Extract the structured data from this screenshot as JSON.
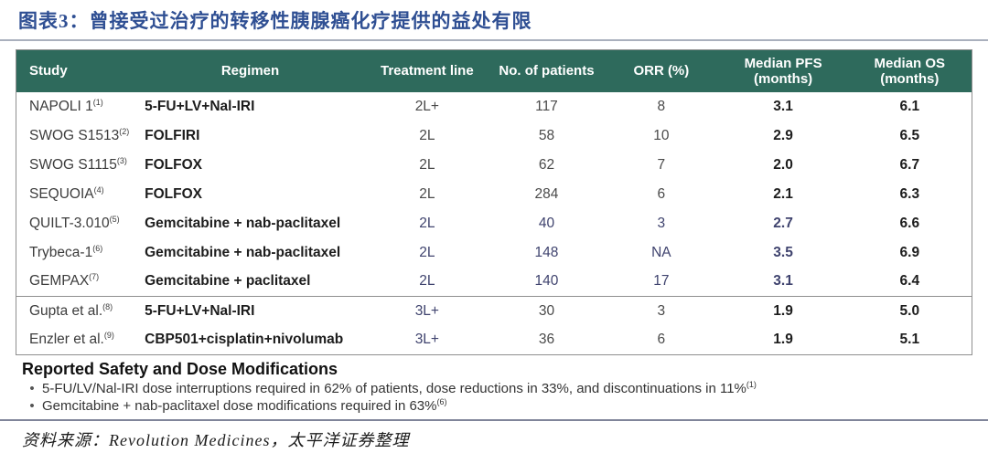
{
  "figure": {
    "title": "图表3：曾接受过治疗的转移性胰腺癌化疗提供的益处有限"
  },
  "table": {
    "columns": [
      {
        "key": "study",
        "label": "Study",
        "align": "left"
      },
      {
        "key": "regimen",
        "label": "Regimen",
        "align": "center"
      },
      {
        "key": "line",
        "label": "Treatment line",
        "align": "center"
      },
      {
        "key": "patients",
        "label": "No. of patients",
        "align": "center"
      },
      {
        "key": "orr",
        "label": "ORR (%)",
        "align": "center"
      },
      {
        "key": "pfs",
        "label": "Median PFS (months)",
        "align": "center"
      },
      {
        "key": "os",
        "label": "Median OS (months)",
        "align": "center"
      }
    ],
    "rows": [
      {
        "study": "NAPOLI 1",
        "ref": "(1)",
        "regimen": "5-FU+LV+Nal-IRI",
        "line": "2L+",
        "patients": "117",
        "orr": "8",
        "pfs": "3.1",
        "os": "6.1",
        "accent": "none",
        "group_start": false
      },
      {
        "study": "SWOG S1513",
        "ref": "(2)",
        "regimen": "FOLFIRI",
        "line": "2L",
        "patients": "58",
        "orr": "10",
        "pfs": "2.9",
        "os": "6.5",
        "accent": "none",
        "group_start": false
      },
      {
        "study": "SWOG S1115",
        "ref": "(3)",
        "regimen": "FOLFOX",
        "line": "2L",
        "patients": "62",
        "orr": "7",
        "pfs": "2.0",
        "os": "6.7",
        "accent": "none",
        "group_start": false
      },
      {
        "study": "SEQUOIA",
        "ref": "(4)",
        "regimen": "FOLFOX",
        "line": "2L",
        "patients": "284",
        "orr": "6",
        "pfs": "2.1",
        "os": "6.3",
        "accent": "none",
        "group_start": false
      },
      {
        "study": "QUILT-3.010",
        "ref": "(5)",
        "regimen": "Gemcitabine + nab-paclitaxel",
        "line": "2L",
        "patients": "40",
        "orr": "3",
        "pfs": "2.7",
        "os": "6.6",
        "accent": "values",
        "group_start": false
      },
      {
        "study": "Trybeca-1",
        "ref": "(6)",
        "regimen": "Gemcitabine + nab-paclitaxel",
        "line": "2L",
        "patients": "148",
        "orr": "NA",
        "pfs": "3.5",
        "os": "6.9",
        "accent": "values",
        "group_start": false
      },
      {
        "study": "GEMPAX",
        "ref": "(7)",
        "regimen": "Gemcitabine + paclitaxel",
        "line": "2L",
        "patients": "140",
        "orr": "17",
        "pfs": "3.1",
        "os": "6.4",
        "accent": "values",
        "group_start": false
      },
      {
        "study": "Gupta et al.",
        "ref": "(8)",
        "regimen": "5-FU+LV+Nal-IRI",
        "line": "3L+",
        "patients": "30",
        "orr": "3",
        "pfs": "1.9",
        "os": "5.0",
        "accent": "line",
        "group_start": true
      },
      {
        "study": "Enzler et al.",
        "ref": "(9)",
        "regimen": "CBP501+cisplatin+nivolumab",
        "line": "3L+",
        "patients": "36",
        "orr": "6",
        "pfs": "1.9",
        "os": "5.1",
        "accent": "line",
        "group_start": false
      }
    ]
  },
  "safety": {
    "heading": "Reported Safety and Dose Modifications",
    "bullets": [
      {
        "text": "5-FU/LV/Nal-IRI dose interruptions required in 62% of patients, dose reductions in 33%, and discontinuations in 11%",
        "ref": "(1)"
      },
      {
        "text": "Gemcitabine + nab-paclitaxel dose modifications required in 63%",
        "ref": "(6)"
      }
    ]
  },
  "footer": {
    "source": "资料来源：Revolution Medicines，太平洋证券整理"
  },
  "colors": {
    "header_bg": "#2e6a5c",
    "header_text": "#ffffff",
    "accent_navy": "#3f436e",
    "title_blue": "#2f4f93",
    "body_text": "#1d1d1d",
    "muted_text": "#4a4a4a",
    "border": "#8f8f8f",
    "divider_top": "#aab0bd",
    "divider_bottom": "#80859a"
  }
}
